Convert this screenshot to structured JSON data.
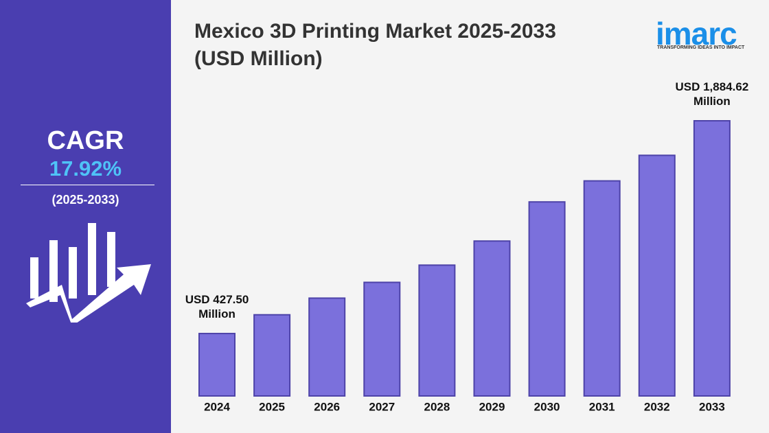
{
  "chart_data": {
    "type": "bar",
    "title": "Mexico 3D Printing Market 2025-2033 (USD Million)",
    "categories": [
      "2024",
      "2025",
      "2026",
      "2027",
      "2028",
      "2029",
      "2030",
      "2031",
      "2032",
      "2033"
    ],
    "values": [
      427.5,
      556,
      670,
      778,
      896,
      1061,
      1329,
      1473,
      1648,
      1884.62
    ],
    "value_labels": [
      "USD 427.50 Million",
      null,
      null,
      null,
      null,
      null,
      null,
      null,
      null,
      "USD 1,884.62 Million"
    ],
    "color": "#7b70dc"
  },
  "sidebar": {
    "label": "CAGR",
    "value": "17.92%",
    "period": "(2025-2033)"
  },
  "logo": {
    "name": "imarc",
    "tagline": "TRANSFORMING IDEAS INTO IMPACT"
  }
}
